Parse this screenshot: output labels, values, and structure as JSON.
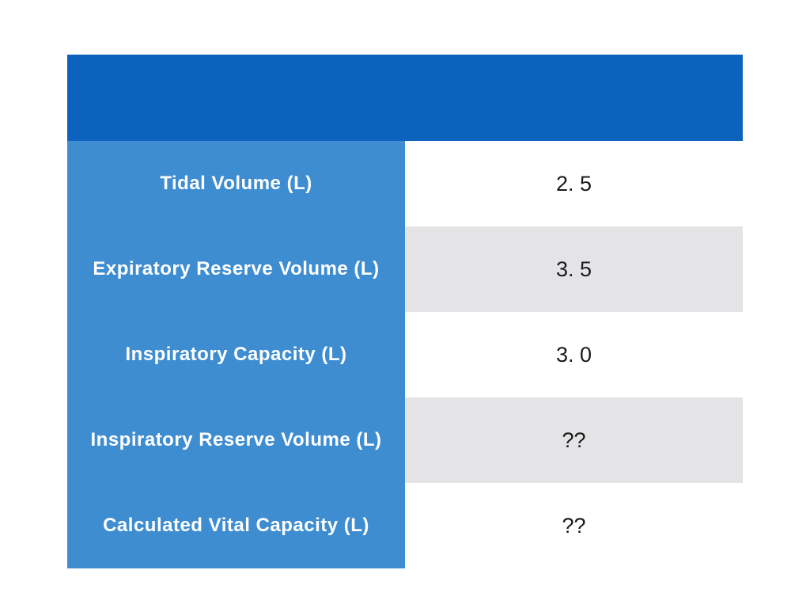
{
  "page": {
    "background_color": "#ffffff"
  },
  "table": {
    "header": {
      "background_color": "#0b63be",
      "text": ""
    },
    "label_column": {
      "background_color": "#3f8dd1",
      "text_color": "#ffffff"
    },
    "value_column": {
      "row_background_color": "#ffffff",
      "row_alt_background_color": "#e4e4e6",
      "text_color": "#1a1a1a"
    },
    "rows": [
      {
        "label": "Tidal Volume (L)",
        "value": "2. 5",
        "shaded": false
      },
      {
        "label": "Expiratory Reserve Volume (L)",
        "value": "3. 5",
        "shaded": true
      },
      {
        "label": "Inspiratory Capacity (L)",
        "value": "3. 0",
        "shaded": false
      },
      {
        "label": "Inspiratory Reserve Volume (L)",
        "value": "??",
        "shaded": true
      },
      {
        "label": "Calculated Vital Capacity (L)",
        "value": "??",
        "shaded": false
      }
    ]
  }
}
